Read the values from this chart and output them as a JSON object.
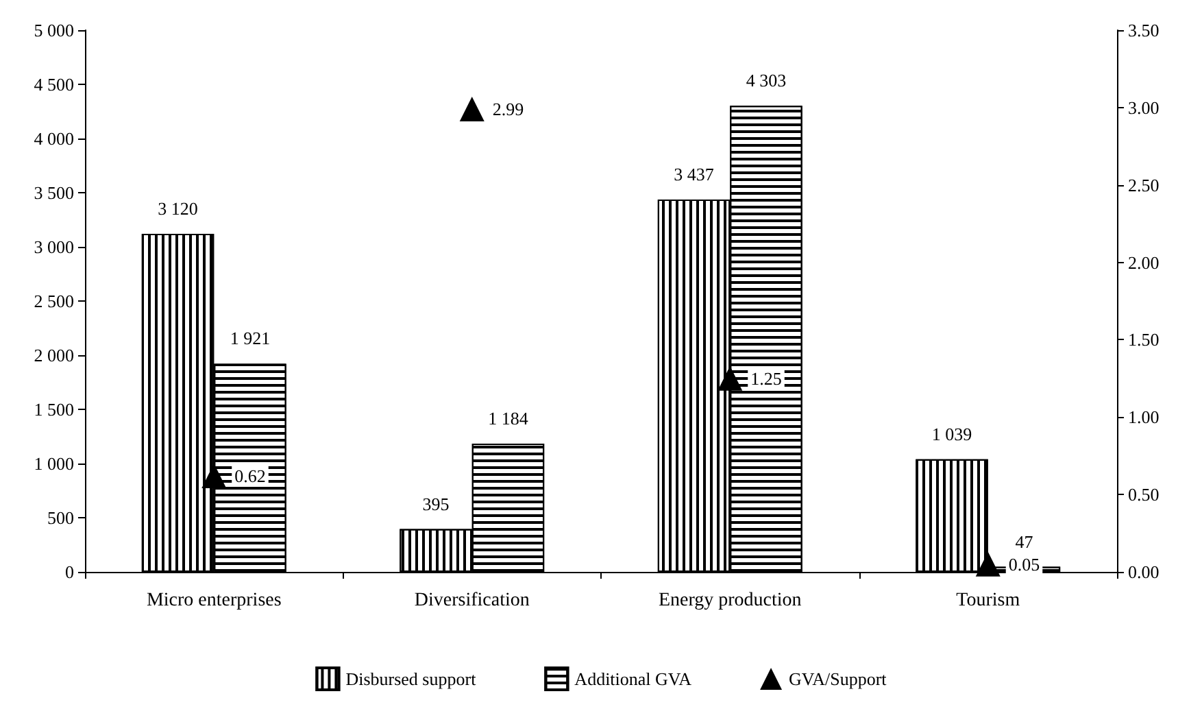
{
  "chart_data": {
    "type": "bar",
    "categories": [
      "Micro enterprises",
      "Diversification",
      "Energy production",
      "Tourism"
    ],
    "series": [
      {
        "name": "Disbursed support",
        "color": "#000000",
        "values": [
          3120,
          395,
          3437,
          1039
        ],
        "value_labels": [
          "3 120",
          "395",
          "3 437",
          "1 039"
        ]
      },
      {
        "name": "Additional GVA",
        "color": "#000000",
        "values": [
          1921,
          1184,
          4303,
          47
        ],
        "value_labels": [
          "1 921",
          "1 184",
          "4 303",
          "47"
        ]
      },
      {
        "name": "GVA/Support",
        "type": "scatter",
        "axis": "y2",
        "marker": "triangle",
        "color": "#000000",
        "x": [
          "Micro enterprises",
          "Diversification",
          "Energy production",
          "Tourism"
        ],
        "values": [
          0.62,
          2.99,
          1.25,
          0.05
        ],
        "value_labels": [
          "0.62",
          "2.99",
          "1.25",
          "0.05"
        ]
      }
    ],
    "ylim": [
      0,
      5000
    ],
    "yticks": [
      {
        "value": 0,
        "label": "0"
      },
      {
        "value": 500,
        "label": "500"
      },
      {
        "value": 1000,
        "label": "1 000"
      },
      {
        "value": 1500,
        "label": "1 500"
      },
      {
        "value": 2000,
        "label": "2 000"
      },
      {
        "value": 2500,
        "label": "2 500"
      },
      {
        "value": 3000,
        "label": "3 000"
      },
      {
        "value": 3500,
        "label": "3 500"
      },
      {
        "value": 4000,
        "label": "4 000"
      },
      {
        "value": 4500,
        "label": "4 500"
      },
      {
        "value": 5000,
        "label": "5 000"
      }
    ],
    "y2lim": [
      0,
      3.5
    ],
    "y2ticks": [
      {
        "value": 0,
        "label": "0.00"
      },
      {
        "value": 0.5,
        "label": "0.50"
      },
      {
        "value": 1,
        "label": "1.00"
      },
      {
        "value": 1.5,
        "label": "1.50"
      },
      {
        "value": 2,
        "label": "2.00"
      },
      {
        "value": 2.5,
        "label": "2.50"
      },
      {
        "value": 3,
        "label": "3.00"
      },
      {
        "value": 3.5,
        "label": "3.50"
      }
    ],
    "grid": false,
    "legend": "bottom"
  }
}
